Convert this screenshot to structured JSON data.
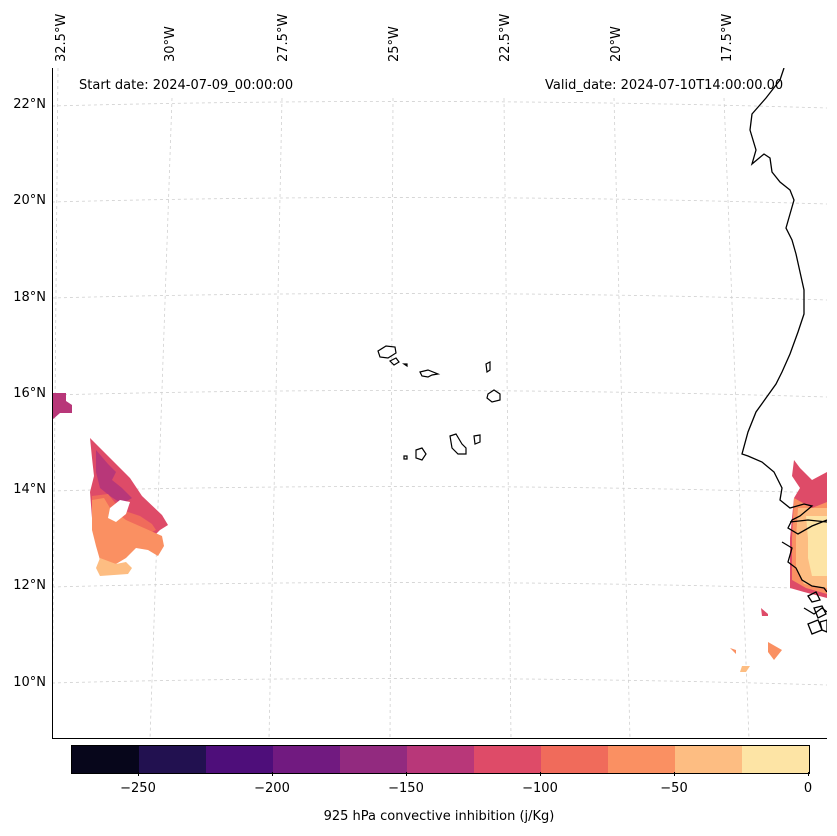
{
  "header": {
    "start_date": "Start date: 2024-07-09_00:00:00",
    "valid_date": "Valid_date: 2024-07-10T14:00:00.00"
  },
  "lon_labels": [
    "32.5°W",
    "30°W",
    "27.5°W",
    "25°W",
    "22.5°W",
    "20°W",
    "17.5°W"
  ],
  "lat_labels": [
    "22°N",
    "20°N",
    "18°N",
    "16°N",
    "14°N",
    "12°N",
    "10°N"
  ],
  "colorbar": {
    "label": "925 hPa convective inhibition (j/Kg)",
    "tick_labels": [
      "−250",
      "−200",
      "−150",
      "−100",
      "−50",
      "0"
    ],
    "min": -275,
    "max": 0,
    "levels": [
      -275,
      -250,
      -225,
      -200,
      -175,
      -150,
      -125,
      -100,
      -75,
      -50,
      -25,
      0
    ],
    "colors": [
      "#07061b",
      "#221150",
      "#4e0e7a",
      "#711a80",
      "#922a7f",
      "#b83779",
      "#de4b68",
      "#f06b5b",
      "#fa9062",
      "#fdbd82",
      "#fde4a5"
    ]
  },
  "colors": {
    "coastline": "#000000",
    "gridline": "#d0d0d0",
    "background": "#ffffff"
  }
}
